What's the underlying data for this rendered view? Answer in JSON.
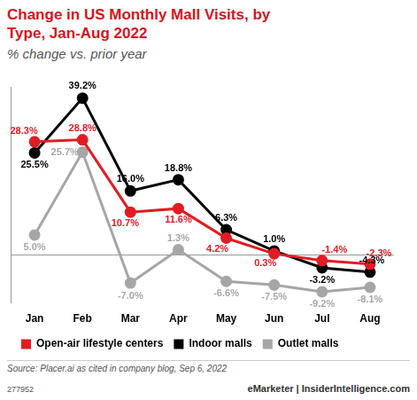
{
  "chart_data": {
    "type": "line",
    "title": "Change in US Monthly Mall Visits, by Type, Jan-Aug 2022",
    "subtitle": "% change vs. prior year",
    "source": "Source: Placer.ai as cited in company blog, Sep 6, 2022",
    "chart_id": "277952",
    "credit": "eMarketer | InsiderIntelligence.com",
    "categories": [
      "Jan",
      "Feb",
      "Mar",
      "Apr",
      "May",
      "Jun",
      "Jul",
      "Aug"
    ],
    "series": [
      {
        "name": "Open-air lifestyle centers",
        "color": "#e31b23",
        "marker": "circle",
        "values": [
          28.3,
          28.8,
          10.7,
          11.6,
          4.2,
          0.3,
          -1.4,
          -2.3
        ],
        "value_labels": [
          "28.3%",
          "28.8%",
          "10.7%",
          "11.6%",
          "4.2%",
          "0.3%",
          "-1.4%",
          "-2.3%"
        ]
      },
      {
        "name": "Indoor malls",
        "color": "#000000",
        "marker": "circle",
        "values": [
          25.5,
          39.2,
          16.0,
          18.8,
          6.3,
          1.0,
          -3.2,
          -4.3
        ],
        "value_labels": [
          "25.5%",
          "39.2%",
          "16.0%",
          "18.8%",
          "6.3%",
          "1.0%",
          "-3.2%",
          "-4.3%"
        ]
      },
      {
        "name": "Outlet malls",
        "color": "#a6a6a6",
        "marker": "circle",
        "values": [
          5.0,
          25.7,
          -7.0,
          1.3,
          -6.6,
          -7.5,
          -9.2,
          -8.1
        ],
        "value_labels": [
          "5.0%",
          "25.7%",
          "-7.0%",
          "1.3%",
          "-6.6%",
          "-7.5%",
          "-9.2%",
          "-8.1%"
        ]
      }
    ],
    "ylim": [
      -12,
      42
    ],
    "yticks": [
      0
    ],
    "grid": true,
    "legend": "bottom",
    "data_labels": true,
    "tick_labels": "x"
  }
}
